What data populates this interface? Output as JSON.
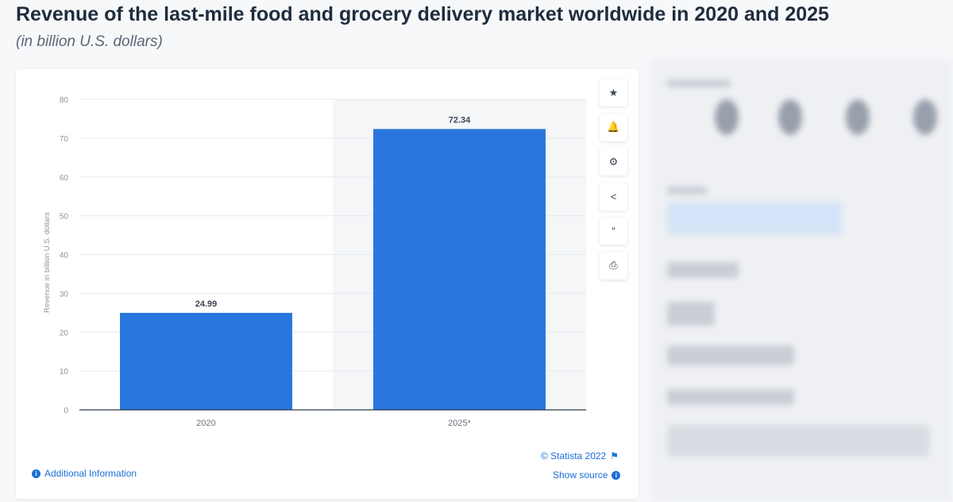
{
  "header": {
    "title": "Revenue of the last-mile food and grocery delivery market worldwide in 2020 and 2025",
    "subtitle": "(in billion U.S. dollars)"
  },
  "toolbar": [
    {
      "name": "favorite",
      "icon": "star-icon",
      "glyph": "★"
    },
    {
      "name": "notification",
      "icon": "bell-icon",
      "glyph": "🔔"
    },
    {
      "name": "settings",
      "icon": "gear-icon",
      "glyph": "⚙"
    },
    {
      "name": "share",
      "icon": "share-icon",
      "glyph": "<"
    },
    {
      "name": "cite",
      "icon": "quote-icon",
      "glyph": "“"
    },
    {
      "name": "print",
      "icon": "print-icon",
      "glyph": "⎙"
    }
  ],
  "footer": {
    "copyright": "© Statista 2022",
    "flag": "⚑",
    "additional_info": "Additional Information",
    "show_source": "Show source",
    "info_glyph": "i"
  },
  "chart_data": {
    "type": "bar",
    "categories": [
      "2020",
      "2025*"
    ],
    "values": [
      24.99,
      72.34
    ],
    "value_labels": [
      "24.99",
      "72.34"
    ],
    "ylabel": "Revenue in billion U.S. dollars",
    "ylim": [
      0,
      80
    ],
    "yticks": [
      0,
      10,
      20,
      30,
      40,
      50,
      60,
      70,
      80
    ],
    "ytick_labels": [
      "0",
      "10",
      "20",
      "30",
      "40",
      "50",
      "60",
      "70",
      "80"
    ],
    "grid": true,
    "highlighted_category": "2025*",
    "bar_color": "#2876dd"
  }
}
